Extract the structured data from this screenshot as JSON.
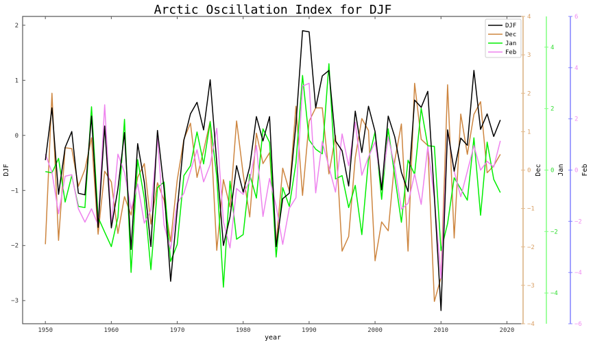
{
  "chart_data": {
    "type": "line",
    "title": "Arctic Oscillation Index for DJF",
    "xlabel": "year",
    "xlim": [
      1946.55,
      2022.45
    ],
    "xticks": [
      1950,
      1960,
      1970,
      1980,
      1990,
      2000,
      2010,
      2020
    ],
    "grid": false,
    "legend_position": "top-right",
    "x": [
      1950,
      1951,
      1952,
      1953,
      1954,
      1955,
      1956,
      1957,
      1958,
      1959,
      1960,
      1961,
      1962,
      1963,
      1964,
      1965,
      1966,
      1967,
      1968,
      1969,
      1970,
      1971,
      1972,
      1973,
      1974,
      1975,
      1976,
      1977,
      1978,
      1979,
      1980,
      1981,
      1982,
      1983,
      1984,
      1985,
      1986,
      1987,
      1988,
      1989,
      1990,
      1991,
      1992,
      1993,
      1994,
      1995,
      1996,
      1997,
      1998,
      1999,
      2000,
      2001,
      2002,
      2003,
      2004,
      2005,
      2006,
      2007,
      2008,
      2009,
      2010,
      2011,
      2012,
      2013,
      2014,
      2015,
      2016,
      2017,
      2018,
      2019
    ],
    "series": [
      {
        "name": "DJF",
        "axis_label": "DJF",
        "color": "#000000",
        "axis_color": "#000000",
        "tick_color": "#333333",
        "ylim": [
          -3.42,
          2.16
        ],
        "yticks": [
          2,
          1,
          0,
          -1,
          -2,
          -3
        ],
        "values": [
          -0.45,
          0.5,
          -1.07,
          -0.22,
          0.07,
          -1.05,
          -1.08,
          0.35,
          -1.67,
          0.17,
          -1.68,
          -0.97,
          0.05,
          -2.07,
          -0.15,
          -0.85,
          -2.02,
          0.09,
          -0.97,
          -2.65,
          -1.35,
          -0.09,
          0.39,
          0.6,
          0.1,
          1.01,
          -0.5,
          -2.0,
          -1.48,
          -0.55,
          -1.03,
          -0.57,
          0.34,
          -0.1,
          0.34,
          -2.02,
          -1.15,
          -1.05,
          0.2,
          1.9,
          1.88,
          0.5,
          1.08,
          1.18,
          -0.1,
          -0.28,
          -0.92,
          0.44,
          -0.31,
          0.53,
          0.07,
          -0.99,
          0.35,
          -0.03,
          -0.67,
          -1.02,
          0.64,
          0.51,
          0.8,
          -1.1,
          -3.18,
          0.1,
          -0.65,
          -0.05,
          -0.18,
          1.18,
          0.11,
          0.39,
          -0.02,
          0.28
        ]
      },
      {
        "name": "Dec",
        "axis_label": "Dec",
        "color": "#cd853f",
        "axis_color": "#e3b98a",
        "tick_color": "#d9a066",
        "ylim": [
          -4,
          4
        ],
        "yticks": [
          4,
          3,
          2,
          1,
          0,
          -1,
          -2,
          -3,
          -4
        ],
        "values": [
          -1.93,
          2.0,
          -1.83,
          0.58,
          0.56,
          -0.42,
          0.02,
          0.84,
          -1.67,
          -0.03,
          -0.31,
          -1.65,
          -0.69,
          -1.17,
          -0.19,
          0.17,
          -1.41,
          -0.33,
          -0.78,
          -1.86,
          -0.26,
          0.8,
          1.22,
          -0.19,
          0.51,
          1.27,
          -2.09,
          -0.25,
          -0.96,
          1.28,
          -0.1,
          -1.22,
          0.96,
          0.17,
          0.45,
          -1.94,
          0.05,
          -0.54,
          1.66,
          -0.66,
          1.27,
          1.62,
          1.62,
          -0.1,
          0.9,
          -2.11,
          -1.73,
          0.32,
          1.34,
          1.03,
          -2.36,
          -1.35,
          -1.58,
          0.26,
          1.2,
          -2.11,
          2.26,
          0.8,
          0.64,
          -3.42,
          -2.8,
          2.22,
          -1.77,
          1.46,
          0.41,
          1.45,
          1.78,
          -0.07,
          0.11,
          0.41
        ]
      },
      {
        "name": "Jan",
        "axis_label": "Jan",
        "color": "#00ee00",
        "axis_color": "#80ff80",
        "tick_color": "#33dd33",
        "ylim": [
          -5,
          5
        ],
        "yticks": [
          4,
          2,
          0,
          -2,
          -4
        ],
        "values": [
          -0.05,
          -0.09,
          0.38,
          -1.04,
          -0.18,
          -1.18,
          -1.22,
          2.06,
          -1.54,
          -2.02,
          -2.49,
          -1.54,
          1.65,
          -3.33,
          0.34,
          -0.91,
          -3.24,
          -0.57,
          -0.39,
          -2.97,
          -2.42,
          -0.18,
          0.14,
          1.24,
          0.2,
          1.57,
          -0.21,
          -3.81,
          -0.36,
          -2.25,
          -2.1,
          -0.14,
          -0.91,
          1.34,
          0.9,
          -2.83,
          -0.57,
          -1.18,
          0.23,
          3.08,
          0.98,
          0.68,
          0.53,
          3.46,
          -0.29,
          -0.18,
          -1.22,
          -0.5,
          -2.1,
          0.34,
          1.24,
          -0.95,
          1.34,
          -0.21,
          -1.7,
          0.32,
          -0.14,
          2.01,
          0.79,
          0.77,
          -2.62,
          -1.74,
          -0.25,
          -0.61,
          -0.98,
          1.05,
          -1.47,
          0.91,
          -0.3,
          -0.73
        ]
      },
      {
        "name": "Feb",
        "axis_label": "Feb",
        "color": "#ee82ee",
        "axis_color": "#8080ff",
        "tick_color": "#f08cf0",
        "ylim": [
          -6,
          6
        ],
        "yticks": [
          6,
          4,
          2,
          0,
          -2,
          -4,
          -6
        ],
        "values": [
          0.62,
          -0.09,
          -1.7,
          -0.24,
          -0.18,
          -1.51,
          -2.03,
          -1.51,
          -2.15,
          2.55,
          -2.15,
          0.62,
          -0.09,
          -1.53,
          -0.54,
          -2.07,
          -1.57,
          1.24,
          -2.15,
          -3.08,
          -1.29,
          -0.91,
          -0.05,
          0.79,
          -0.46,
          0.21,
          1.63,
          -2.02,
          -3.04,
          -0.72,
          -0.95,
          -0.41,
          0.96,
          -1.81,
          -0.33,
          -1.4,
          -2.9,
          -1.49,
          -1.08,
          3.28,
          3.39,
          -0.89,
          1.11,
          0.12,
          -0.86,
          1.41,
          0.17,
          1.87,
          -0.2,
          0.51,
          1.1,
          -0.63,
          1.3,
          0.12,
          -1.53,
          -1.3,
          -0.15,
          -1.34,
          0.92,
          -1.12,
          -4.24,
          1.54,
          -0.05,
          -1.04,
          -0.05,
          0.96,
          0.0,
          0.34,
          0.12,
          1.14
        ]
      }
    ]
  }
}
